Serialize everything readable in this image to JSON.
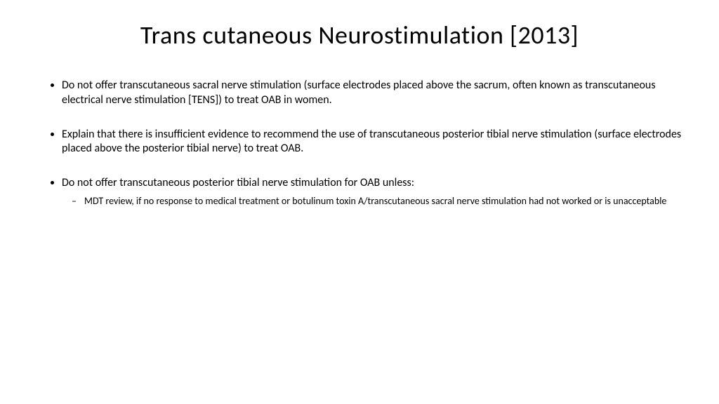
{
  "title": "Trans cutaneous Neurostimulation [2013]",
  "bullets": [
    {
      "text": "Do not offer transcutaneous sacral nerve stimulation (surface electrodes placed above the sacrum, often known as transcutaneous electrical nerve stimulation [TENS]) to treat OAB in women."
    },
    {
      "text": "Explain that there is insufficient evidence to recommend the use of transcutaneous posterior tibial nerve stimulation (surface electrodes placed above the posterior tibial nerve) to treat OAB."
    },
    {
      "text": "Do not offer transcutaneous posterior tibial nerve stimulation for OAB unless:",
      "sub": [
        "MDT review, if no response to medical treatment or botulinum toxin A/transcutaneous sacral nerve stimulation had not worked or is unacceptable"
      ]
    }
  ],
  "colors": {
    "background": "#ffffff",
    "text": "#000000"
  },
  "typography": {
    "title_fontsize": 36,
    "body_fontsize": 16,
    "sub_fontsize": 14,
    "font_family": "Calibri"
  }
}
